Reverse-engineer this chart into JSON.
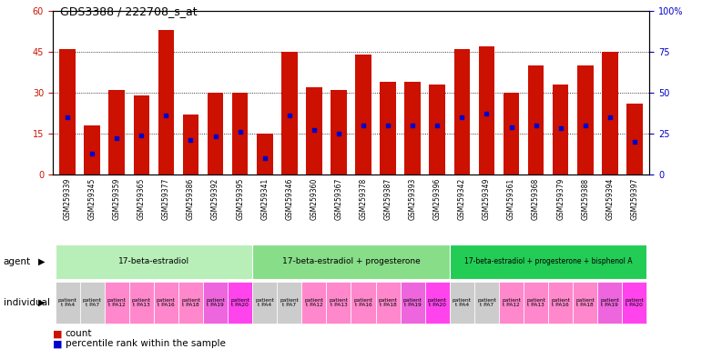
{
  "title": "GDS3388 / 222708_s_at",
  "samples": [
    "GSM259339",
    "GSM259345",
    "GSM259359",
    "GSM259365",
    "GSM259377",
    "GSM259386",
    "GSM259392",
    "GSM259395",
    "GSM259341",
    "GSM259346",
    "GSM259360",
    "GSM259367",
    "GSM259378",
    "GSM259387",
    "GSM259393",
    "GSM259396",
    "GSM259342",
    "GSM259349",
    "GSM259361",
    "GSM259368",
    "GSM259379",
    "GSM259388",
    "GSM259394",
    "GSM259397"
  ],
  "counts": [
    46,
    18,
    31,
    29,
    53,
    22,
    30,
    30,
    15,
    45,
    32,
    31,
    44,
    34,
    34,
    33,
    46,
    47,
    30,
    40,
    33,
    40,
    45,
    26
  ],
  "percentiles": [
    35,
    13,
    22,
    24,
    36,
    21,
    23,
    26,
    10,
    36,
    27,
    25,
    30,
    30,
    30,
    30,
    35,
    37,
    29,
    30,
    28,
    30,
    35,
    20
  ],
  "groups": [
    {
      "label": "17-beta-estradiol",
      "start": 0,
      "end": 8,
      "color": "#B8EEB8"
    },
    {
      "label": "17-beta-estradiol + progesterone",
      "start": 8,
      "end": 16,
      "color": "#88DD88"
    },
    {
      "label": "17-beta-estradiol + progesterone + bisphenol A",
      "start": 16,
      "end": 24,
      "color": "#22CC55"
    }
  ],
  "individuals": [
    "patient\nt PA4",
    "patient\nt PA7",
    "patient\nt PA12",
    "patient\nt PA13",
    "patient\nt PA16",
    "patient\nt PA18",
    "patient\nt PA19",
    "patient\nt PA20"
  ],
  "bar_color": "#CC1100",
  "dot_color": "#0000CC",
  "ylim_left": [
    0,
    60
  ],
  "ylim_right": [
    0,
    100
  ],
  "yticks_left": [
    0,
    15,
    30,
    45,
    60
  ],
  "yticks_right": [
    0,
    25,
    50,
    75,
    100
  ],
  "indiv_colors": [
    "#CCCCCC",
    "#CCCCCC",
    "#FF88CC",
    "#FF88CC",
    "#FF88CC",
    "#FF88CC",
    "#EE66DD",
    "#FF44EE"
  ]
}
